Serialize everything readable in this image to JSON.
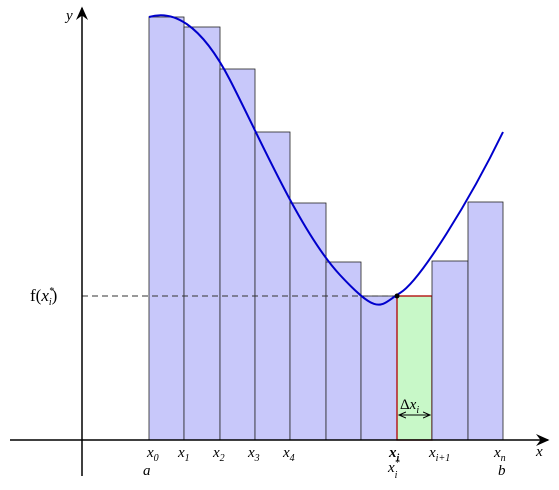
{
  "axes": {
    "x": "x",
    "y": "y"
  },
  "ticks": [
    {
      "base": "x",
      "sub": "0"
    },
    {
      "base": "x",
      "sub": "1"
    },
    {
      "base": "x",
      "sub": "2"
    },
    {
      "base": "x",
      "sub": "3"
    },
    {
      "base": "x",
      "sub": "4"
    },
    {
      "base": "x",
      "sub": "i"
    },
    {
      "base": "x",
      "sub": "i+1"
    },
    {
      "base": "x",
      "sub": "n"
    }
  ],
  "endpoints": {
    "a": "a",
    "b": "b"
  },
  "sample": {
    "base": "x",
    "sub": "i",
    "sup": "*"
  },
  "value_label": {
    "open": "f(",
    "base": "x",
    "sub": "i",
    "sup": "*",
    "close": ")"
  },
  "width_label": {
    "delta": "Δ",
    "base": "x",
    "sub": "i"
  }
}
